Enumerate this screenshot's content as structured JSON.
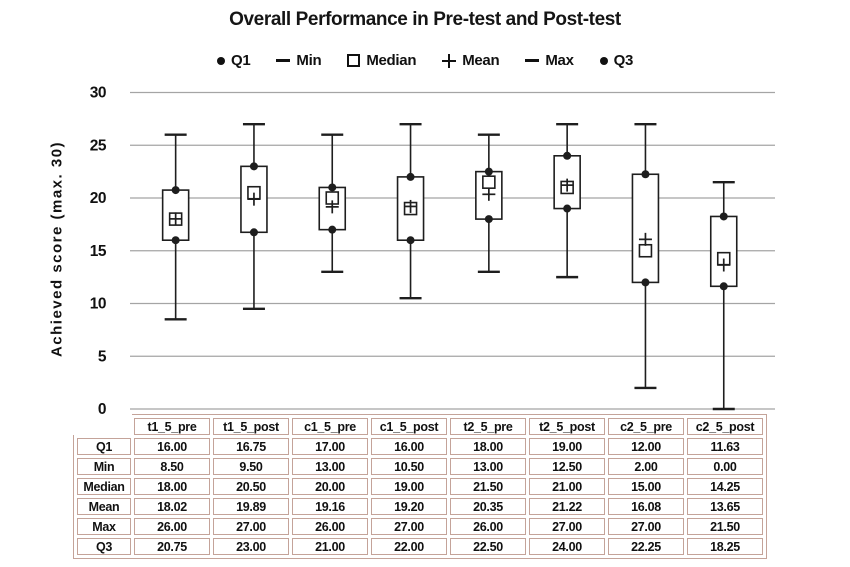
{
  "chart_data": {
    "type": "boxplot",
    "title": "Overall Performance in Pre-test and Post-test",
    "ylabel": "Achieved score (max. 30)",
    "ylim": [
      0,
      30
    ],
    "yticks": [
      30,
      25,
      20,
      15,
      10,
      5,
      0
    ],
    "grid": true,
    "legend_position": "top",
    "legend_entries": [
      {
        "marker": "dot",
        "label": "Q1"
      },
      {
        "marker": "dash",
        "label": "Min"
      },
      {
        "marker": "square",
        "label": "Median"
      },
      {
        "marker": "plus",
        "label": "Mean"
      },
      {
        "marker": "dash",
        "label": "Max"
      },
      {
        "marker": "dot",
        "label": "Q3"
      }
    ],
    "categories": [
      "t1_5_pre",
      "t1_5_post",
      "c1_5_pre",
      "c1_5_post",
      "t2_5_pre",
      "t2_5_post",
      "c2_5_pre",
      "c2_5_post"
    ],
    "series": [
      {
        "name": "Q1",
        "values": [
          16.0,
          16.75,
          17.0,
          16.0,
          18.0,
          19.0,
          12.0,
          11.63
        ]
      },
      {
        "name": "Min",
        "values": [
          8.5,
          9.5,
          13.0,
          10.5,
          13.0,
          12.5,
          2.0,
          0.0
        ]
      },
      {
        "name": "Median",
        "values": [
          18.0,
          20.5,
          20.0,
          19.0,
          21.5,
          21.0,
          15.0,
          14.25
        ]
      },
      {
        "name": "Mean",
        "values": [
          18.02,
          19.89,
          19.16,
          19.2,
          20.35,
          21.22,
          16.08,
          13.65
        ]
      },
      {
        "name": "Max",
        "values": [
          26.0,
          27.0,
          26.0,
          27.0,
          26.0,
          27.0,
          27.0,
          21.5
        ]
      },
      {
        "name": "Q3",
        "values": [
          20.75,
          23.0,
          21.0,
          22.0,
          22.5,
          24.0,
          22.25,
          18.25
        ]
      }
    ]
  },
  "table": {
    "columns": [
      "t1_5_pre",
      "t1_5_post",
      "c1_5_pre",
      "c1_5_post",
      "t2_5_pre",
      "t2_5_post",
      "c2_5_pre",
      "c2_5_post"
    ],
    "rows": [
      {
        "label": "Q1",
        "values": [
          "16.00",
          "16.75",
          "17.00",
          "16.00",
          "18.00",
          "19.00",
          "12.00",
          "11.63"
        ]
      },
      {
        "label": "Min",
        "values": [
          "8.50",
          "9.50",
          "13.00",
          "10.50",
          "13.00",
          "12.50",
          "2.00",
          "0.00"
        ]
      },
      {
        "label": "Median",
        "values": [
          "18.00",
          "20.50",
          "20.00",
          "19.00",
          "21.50",
          "21.00",
          "15.00",
          "14.25"
        ]
      },
      {
        "label": "Mean",
        "values": [
          "18.02",
          "19.89",
          "19.16",
          "19.20",
          "20.35",
          "21.22",
          "16.08",
          "13.65"
        ]
      },
      {
        "label": "Max",
        "values": [
          "26.00",
          "27.00",
          "26.00",
          "27.00",
          "26.00",
          "27.00",
          "27.00",
          "21.50"
        ]
      },
      {
        "label": "Q3",
        "values": [
          "20.75",
          "23.00",
          "21.00",
          "22.00",
          "22.50",
          "24.00",
          "22.25",
          "18.25"
        ]
      }
    ]
  },
  "colors": {
    "grid": "#a5a5a5",
    "plot": "#1e1e1e",
    "text": "#111111",
    "table_border": "#c4a399",
    "background": "#ffffff"
  }
}
